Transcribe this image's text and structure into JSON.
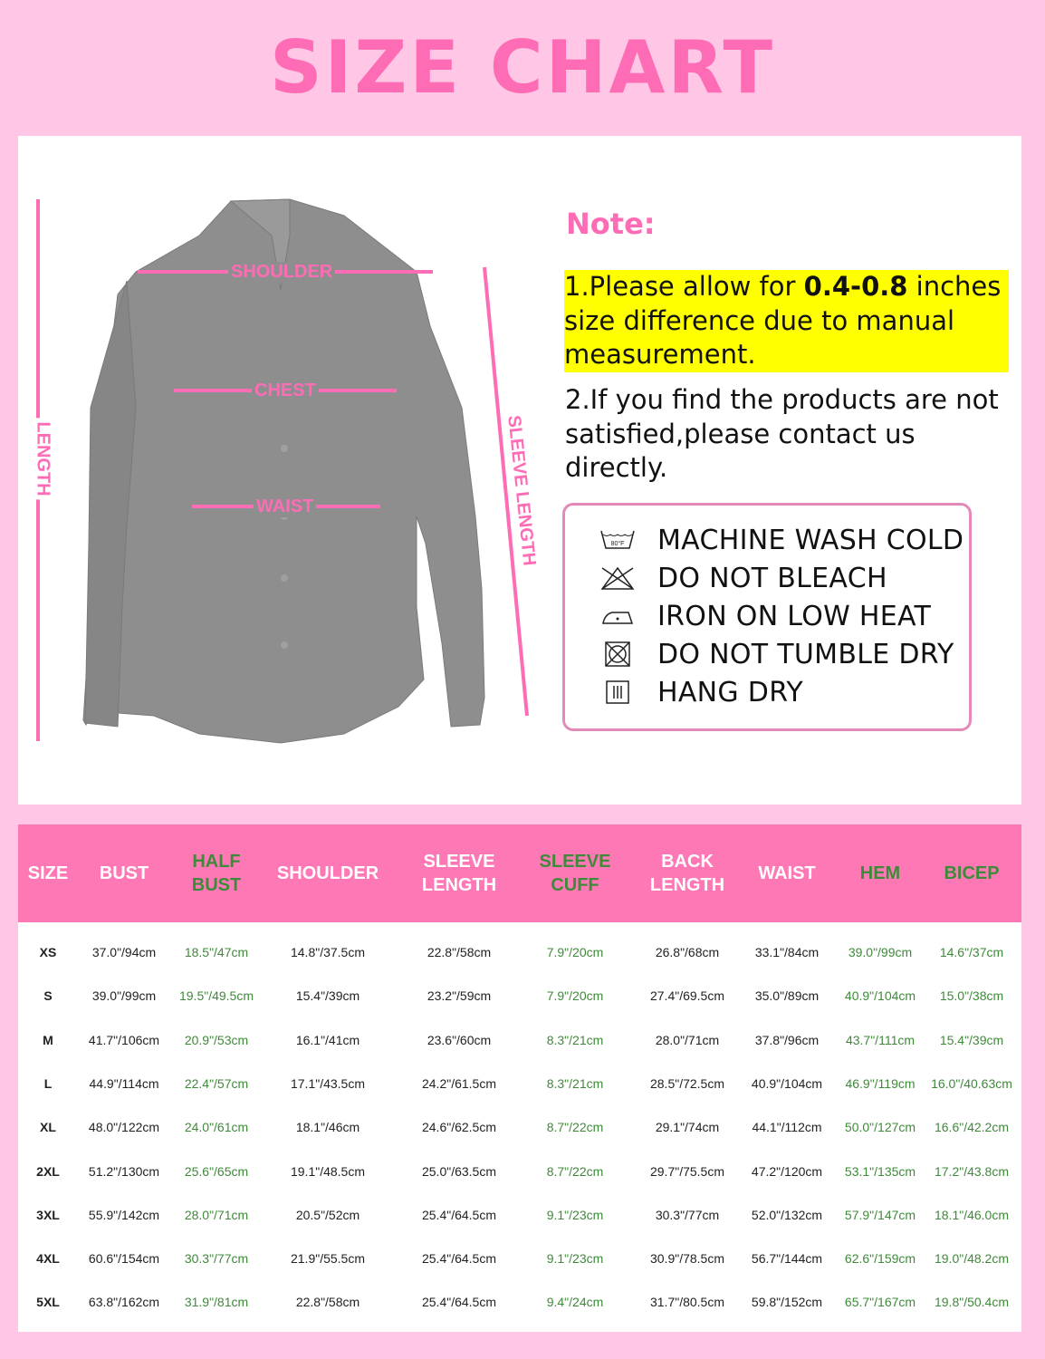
{
  "title": "SIZE CHART",
  "diagram": {
    "labels": {
      "shoulder": "SHOULDER",
      "chest": "CHEST",
      "waist": "WAIST",
      "length": "LENGTH",
      "sleeve_length": "SLEEVE LENGTH"
    },
    "shirt_color": "#8c8c8c",
    "accent_color": "#ff6cb6"
  },
  "note": {
    "title": "Note:",
    "item1_pre": "1.Please allow for ",
    "item1_bold": "0.4-0.8",
    "item1_post": " inches size difference due to manual measurement.",
    "item2": "2.If you find the products are not satisfied,please contact us directly."
  },
  "care": [
    {
      "icon": "machine-wash-icon",
      "icon_text": "80°F",
      "label": "MACHINE WASH COLD"
    },
    {
      "icon": "no-bleach-icon",
      "label": "DO NOT BLEACH"
    },
    {
      "icon": "iron-low-icon",
      "label": "IRON ON LOW HEAT"
    },
    {
      "icon": "no-tumble-dry-icon",
      "label": "DO NOT TUMBLE DRY"
    },
    {
      "icon": "hang-dry-icon",
      "label": "HANG DRY"
    }
  ],
  "table": {
    "header_color": "#ff78b6",
    "white_color": "#ffffff",
    "green_color": "#3f8a3a",
    "columns": [
      {
        "label": "SIZE",
        "green": false
      },
      {
        "label": "BUST",
        "green": false
      },
      {
        "label": "HALF\nBUST",
        "green": true
      },
      {
        "label": "SHOULDER",
        "green": false
      },
      {
        "label": "SLEEVE\nLENGTH",
        "green": false
      },
      {
        "label": "SLEEVE\nCUFF",
        "green": true
      },
      {
        "label": "BACK\nLENGTH",
        "green": false
      },
      {
        "label": "WAIST",
        "green": false
      },
      {
        "label": "HEM",
        "green": true
      },
      {
        "label": "BICEP",
        "green": true
      }
    ],
    "rows": [
      [
        "XS",
        "37.0\"/94cm",
        "18.5\"/47cm",
        "14.8\"/37.5cm",
        "22.8\"/58cm",
        "7.9\"/20cm",
        "26.8\"/68cm",
        "33.1\"/84cm",
        "39.0\"/99cm",
        "14.6\"/37cm"
      ],
      [
        "S",
        "39.0\"/99cm",
        "19.5\"/49.5cm",
        "15.4\"/39cm",
        "23.2\"/59cm",
        "7.9\"/20cm",
        "27.4\"/69.5cm",
        "35.0\"/89cm",
        "40.9\"/104cm",
        "15.0\"/38cm"
      ],
      [
        "M",
        "41.7\"/106cm",
        "20.9\"/53cm",
        "16.1\"/41cm",
        "23.6\"/60cm",
        "8.3\"/21cm",
        "28.0\"/71cm",
        "37.8\"/96cm",
        "43.7\"/111cm",
        "15.4\"/39cm"
      ],
      [
        "L",
        "44.9\"/114cm",
        "22.4\"/57cm",
        "17.1\"/43.5cm",
        "24.2\"/61.5cm",
        "8.3\"/21cm",
        "28.5\"/72.5cm",
        "40.9\"/104cm",
        "46.9\"/119cm",
        "16.0\"/40.63cm"
      ],
      [
        "XL",
        "48.0\"/122cm",
        "24.0\"/61cm",
        "18.1\"/46cm",
        "24.6\"/62.5cm",
        "8.7\"/22cm",
        "29.1\"/74cm",
        "44.1\"/112cm",
        "50.0\"/127cm",
        "16.6\"/42.2cm"
      ],
      [
        "2XL",
        "51.2\"/130cm",
        "25.6\"/65cm",
        "19.1\"/48.5cm",
        "25.0\"/63.5cm",
        "8.7\"/22cm",
        "29.7\"/75.5cm",
        "47.2\"/120cm",
        "53.1\"/135cm",
        "17.2\"/43.8cm"
      ],
      [
        "3XL",
        "55.9\"/142cm",
        "28.0\"/71cm",
        "20.5\"/52cm",
        "25.4\"/64.5cm",
        "9.1\"/23cm",
        "30.3\"/77cm",
        "52.0\"/132cm",
        "57.9\"/147cm",
        "18.1\"/46.0cm"
      ],
      [
        "4XL",
        "60.6\"/154cm",
        "30.3\"/77cm",
        "21.9\"/55.5cm",
        "25.4\"/64.5cm",
        "9.1\"/23cm",
        "30.9\"/78.5cm",
        "56.7\"/144cm",
        "62.6\"/159cm",
        "19.0\"/48.2cm"
      ],
      [
        "5XL",
        "63.8\"/162cm",
        "31.9\"/81cm",
        "22.8\"/58cm",
        "25.4\"/64.5cm",
        "9.4\"/24cm",
        "31.7\"/80.5cm",
        "59.8\"/152cm",
        "65.7\"/167cm",
        "19.8\"/50.4cm"
      ]
    ]
  }
}
